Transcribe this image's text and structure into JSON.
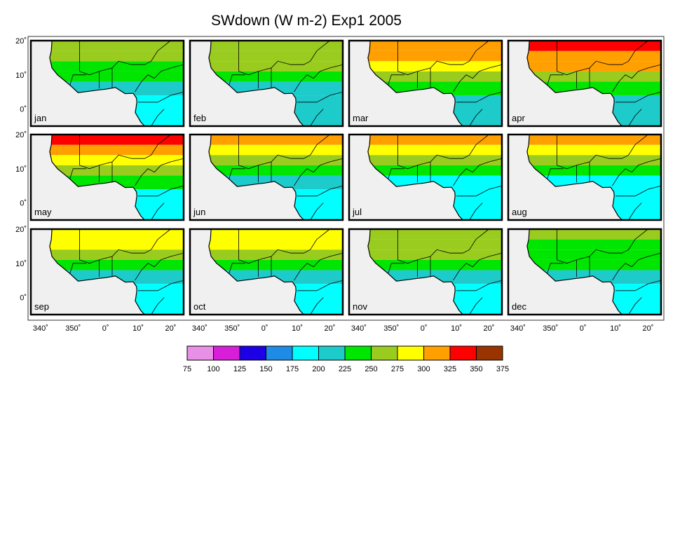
{
  "title": "SWdown (W m-2) Exp1 2005",
  "panels": [
    {
      "label": "jan",
      "levels": [
        190,
        205,
        225,
        240,
        250,
        255
      ]
    },
    {
      "label": "feb",
      "levels": [
        200,
        215,
        235,
        255,
        265,
        270
      ]
    },
    {
      "label": "mar",
      "levels": [
        205,
        230,
        260,
        285,
        300,
        310
      ]
    },
    {
      "label": "apr",
      "levels": [
        205,
        235,
        270,
        300,
        320,
        335
      ]
    },
    {
      "label": "may",
      "levels": [
        195,
        225,
        260,
        290,
        315,
        335
      ]
    },
    {
      "label": "jun",
      "levels": [
        185,
        205,
        235,
        270,
        295,
        310
      ]
    },
    {
      "label": "jul",
      "levels": [
        180,
        195,
        225,
        265,
        290,
        305
      ]
    },
    {
      "label": "aug",
      "levels": [
        180,
        195,
        225,
        260,
        285,
        300
      ]
    },
    {
      "label": "sep",
      "levels": [
        185,
        205,
        235,
        265,
        285,
        295
      ]
    },
    {
      "label": "oct",
      "levels": [
        195,
        215,
        245,
        265,
        280,
        285
      ]
    },
    {
      "label": "nov",
      "levels": [
        195,
        215,
        240,
        255,
        265,
        270
      ]
    },
    {
      "label": "dec",
      "levels": [
        190,
        205,
        225,
        235,
        245,
        250
      ]
    }
  ],
  "y_tick_labels": [
    "20˚",
    "10˚",
    "0˚"
  ],
  "x_tick_labels": [
    "340˚",
    "350˚",
    "0˚",
    "10˚",
    "20˚"
  ],
  "colorbar": {
    "tick_labels": [
      "75",
      "100",
      "125",
      "150",
      "175",
      "200",
      "225",
      "250",
      "275",
      "300",
      "325",
      "350",
      "375"
    ],
    "colors": [
      "#e88fe6",
      "#d91ed9",
      "#1e00e6",
      "#1e8ce6",
      "#00ffff",
      "#1ecbcb",
      "#00e600",
      "#99cc1e",
      "#ffff00",
      "#ffa000",
      "#ff0000",
      "#993300"
    ]
  },
  "land_fill": "#f0f0f0",
  "chart_data": {
    "type": "heatmap",
    "title": "SWdown (W m-2) Exp1 2005",
    "variable": "SWdown",
    "units": "W m-2",
    "longitude_range": [
      337,
      24
    ],
    "latitude_range": [
      -5,
      20
    ],
    "colorbar_range": [
      75,
      375
    ],
    "colorbar_step": 25,
    "panels": [
      "jan",
      "feb",
      "mar",
      "apr",
      "may",
      "jun",
      "jul",
      "aug",
      "sep",
      "oct",
      "nov",
      "dec"
    ],
    "approx_zonal_values_by_latitude_band": {
      "bands": [
        "0-4N",
        "4-8N",
        "8-11N",
        "11-14N",
        "14-17N",
        "17-20N"
      ],
      "jan": [
        190,
        205,
        225,
        240,
        250,
        255
      ],
      "feb": [
        200,
        215,
        235,
        255,
        265,
        270
      ],
      "mar": [
        205,
        230,
        260,
        285,
        300,
        310
      ],
      "apr": [
        205,
        235,
        270,
        300,
        320,
        335
      ],
      "may": [
        195,
        225,
        260,
        290,
        315,
        335
      ],
      "jun": [
        185,
        205,
        235,
        270,
        295,
        310
      ],
      "jul": [
        180,
        195,
        225,
        265,
        290,
        305
      ],
      "aug": [
        180,
        195,
        225,
        260,
        285,
        300
      ],
      "sep": [
        185,
        205,
        235,
        265,
        285,
        295
      ],
      "oct": [
        195,
        215,
        245,
        265,
        280,
        285
      ],
      "nov": [
        195,
        215,
        240,
        255,
        265,
        270
      ],
      "dec": [
        190,
        205,
        225,
        235,
        245,
        250
      ]
    }
  }
}
